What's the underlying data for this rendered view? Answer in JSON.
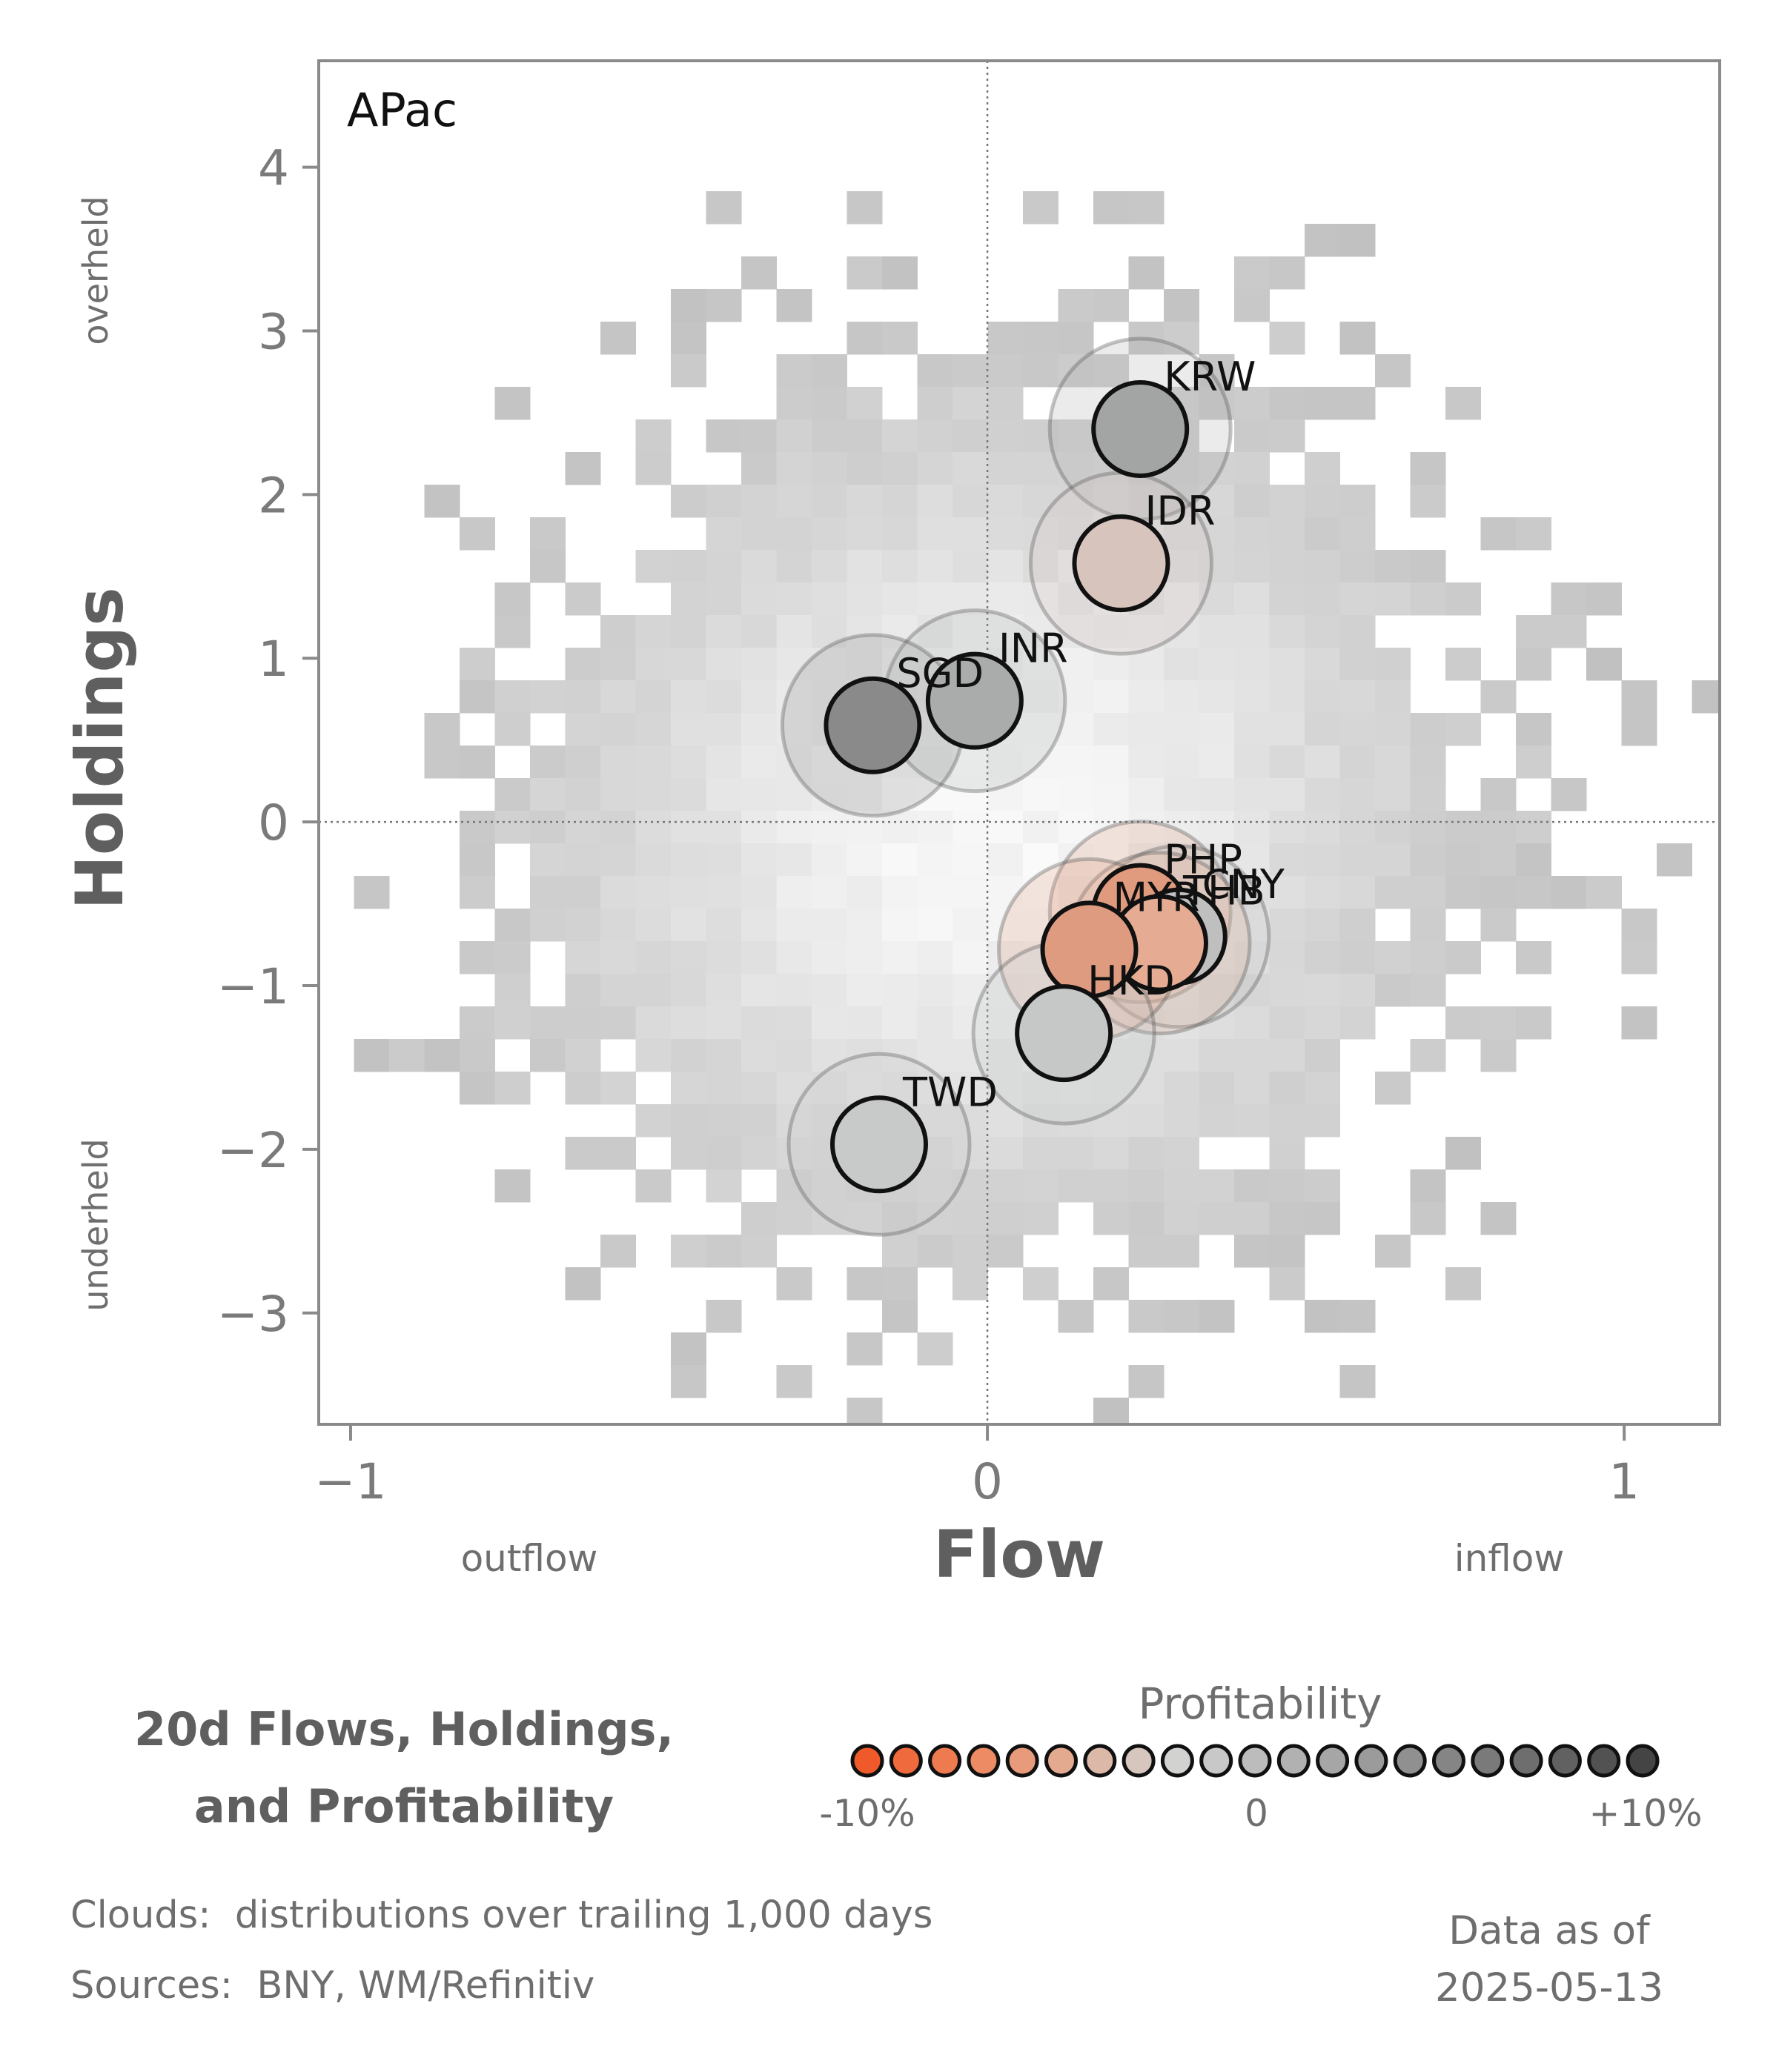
{
  "chart_data": {
    "type": "scatter",
    "panel_label": "APac",
    "xlabel": "Flow",
    "ylabel": "Holdings",
    "x_ticks": [
      -1,
      0,
      1
    ],
    "x_tick_labels": [
      "−1",
      "0",
      "1"
    ],
    "y_ticks": [
      -3,
      -2,
      -1,
      0,
      1,
      2,
      3,
      4
    ],
    "y_tick_labels": [
      "−3",
      "−2",
      "−1",
      "0",
      "1",
      "2",
      "3",
      "4"
    ],
    "xlim": [
      -1.05,
      1.15
    ],
    "ylim": [
      -3.68,
      4.65
    ],
    "x_annotations": {
      "left": "outflow",
      "right": "inflow"
    },
    "y_annotations": {
      "top": "overheld",
      "bottom": "underheld"
    },
    "reference_lines": {
      "x": 0,
      "y": 0,
      "style": "dotted"
    },
    "background": "2D histogram cloud of trailing distributions (grey)",
    "points": [
      {
        "label": "KRW",
        "x": 0.24,
        "y": 2.4,
        "color": "#a2a5a4"
      },
      {
        "label": "IDR",
        "x": 0.21,
        "y": 1.58,
        "color": "#d6c4bd"
      },
      {
        "label": "INR",
        "x": -0.02,
        "y": 0.74,
        "color": "#a9acab"
      },
      {
        "label": "SGD",
        "x": -0.18,
        "y": 0.59,
        "color": "#8a8a8a"
      },
      {
        "label": "PHP",
        "x": 0.24,
        "y": -0.55,
        "color": "#e09a7e"
      },
      {
        "label": "CNY",
        "x": 0.3,
        "y": -0.7,
        "color": "#bfbfbf"
      },
      {
        "label": "THB",
        "x": 0.27,
        "y": -0.74,
        "color": "#e5ab93"
      },
      {
        "label": "MYR",
        "x": 0.16,
        "y": -0.78,
        "color": "#df9b80"
      },
      {
        "label": "HKD",
        "x": 0.12,
        "y": -1.29,
        "color": "#c6c8c7"
      },
      {
        "label": "TWD",
        "x": -0.17,
        "y": -1.97,
        "color": "#c7cac9"
      }
    ],
    "colorbar": {
      "title": "Profitability",
      "min_label": "-10%",
      "mid_label": "0",
      "max_label": "+10%",
      "colors": [
        "#f05a2a",
        "#ef6a3c",
        "#ee7a50",
        "#ec8b64",
        "#e89b7a",
        "#e3aa90",
        "#dcb8a8",
        "#d6c6be",
        "#d2d2d0",
        "#c8c8c8",
        "#bcbcbc",
        "#b1b1b1",
        "#a6a6a6",
        "#9b9b9b",
        "#909090",
        "#858585",
        "#7a7a7a",
        "#6e6e6e",
        "#616161",
        "#525252",
        "#444444"
      ]
    }
  },
  "figure_title": "20d Flows, Holdings,\nand Profitability",
  "footnotes": {
    "clouds": "Clouds:  distributions over trailing 1,000 days",
    "sources": "Sources:  BNY, WM/Refinitiv"
  },
  "data_as_of": {
    "line1": "Data as of",
    "line2": "2025-05-13"
  }
}
